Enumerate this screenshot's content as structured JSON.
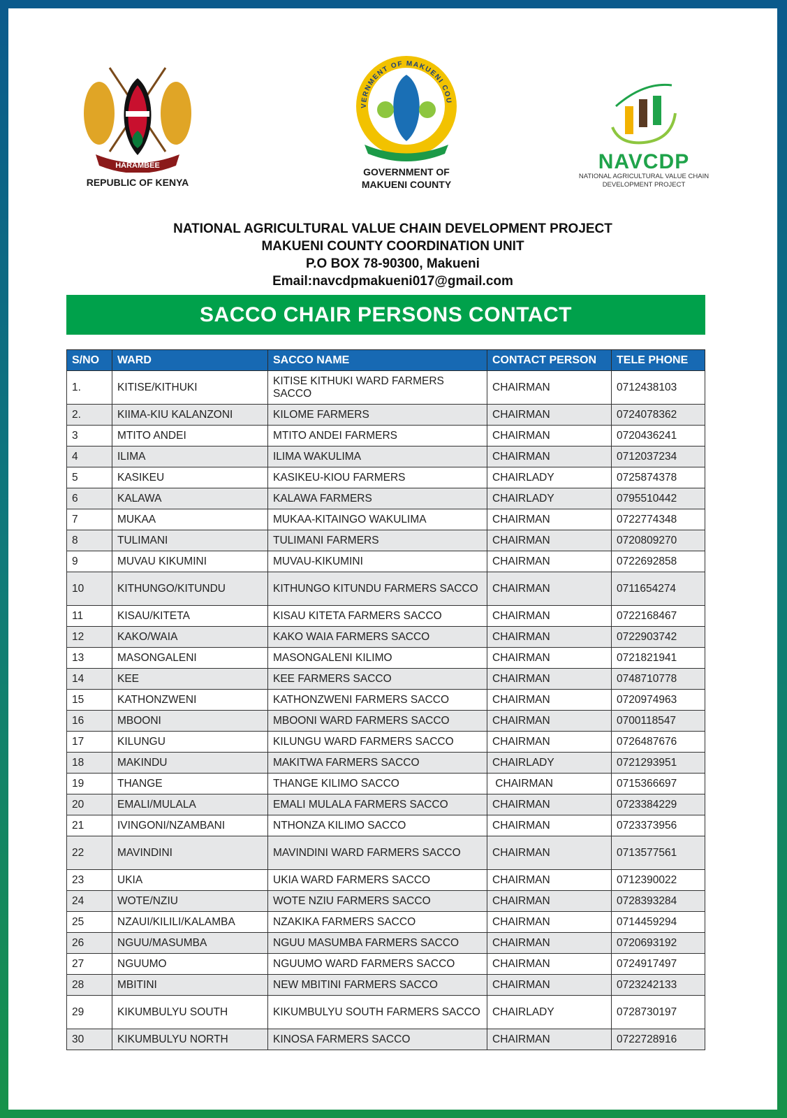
{
  "logos": {
    "kenya": {
      "caption": "REPUBLIC OF KENYA",
      "motto": "HARAMBEE"
    },
    "makueni": {
      "caption_line1": "GOVERNMENT OF",
      "caption_line2": "MAKUENI COUNTY",
      "seal_text": "GOVERNMENT OF MAKUENI COUNTY"
    },
    "navcdp": {
      "name": "NAVCDP",
      "sub_line1": "NATIONAL AGRICULTURAL VALUE CHAIN",
      "sub_line2": "DEVELOPMENT PROJECT"
    }
  },
  "heading": {
    "line1": "NATIONAL AGRICULTURAL VALUE CHAIN DEVELOPMENT PROJECT",
    "line2": "MAKUENI COUNTY COORDINATION UNIT",
    "line3": "P.O BOX 78-90300, Makueni",
    "line4": "Email:navcdpmakueni017@gmail.com"
  },
  "banner": "SACCO CHAIR PERSONS CONTACT",
  "colors": {
    "header_blue": "#1769b3",
    "banner_green": "#00a14b",
    "row_alt": "#e6e7e8"
  },
  "table": {
    "headers": [
      "S/NO",
      "WARD",
      "SACCO NAME",
      "CONTACT PERSON",
      "TELE PHONE"
    ],
    "rows": [
      [
        "1.",
        "KITISE/KITHUKI",
        "KITISE KITHUKI WARD FARMERS SACCO",
        "CHAIRMAN",
        "0712438103"
      ],
      [
        "2.",
        "KIIMA-KIU KALANZONI",
        "KILOME FARMERS",
        "CHAIRMAN",
        "0724078362"
      ],
      [
        "3",
        "MTITO ANDEI",
        "MTITO ANDEI FARMERS",
        "CHAIRMAN",
        "0720436241"
      ],
      [
        "4",
        "ILIMA",
        "ILIMA WAKULIMA",
        "CHAIRMAN",
        "0712037234"
      ],
      [
        "5",
        "KASIKEU",
        "KASIKEU-KIOU FARMERS",
        "CHAIRLADY",
        "0725874378"
      ],
      [
        "6",
        "KALAWA",
        "KALAWA FARMERS",
        "CHAIRLADY",
        "0795510442"
      ],
      [
        "7",
        "MUKAA",
        "MUKAA-KITAINGO WAKULIMA",
        "CHAIRMAN",
        "0722774348"
      ],
      [
        "8",
        "TULIMANI",
        "TULIMANI FARMERS",
        "CHAIRMAN",
        "0720809270"
      ],
      [
        "9",
        "MUVAU KIKUMINI",
        "MUVAU-KIKUMINI",
        "CHAIRMAN",
        "0722692858"
      ],
      [
        "10",
        "KITHUNGO/KITUNDU",
        "KITHUNGO KITUNDU FARMERS SACCO",
        "CHAIRMAN",
        "0711654274"
      ],
      [
        "11",
        "KISAU/KITETA",
        "KISAU KITETA FARMERS SACCO",
        "CHAIRMAN",
        "0722168467"
      ],
      [
        "12",
        "KAKO/WAIA",
        "KAKO WAIA FARMERS SACCO",
        "CHAIRMAN",
        "0722903742"
      ],
      [
        "13",
        "MASONGALENI",
        "MASONGALENI KILIMO",
        "CHAIRMAN",
        "0721821941"
      ],
      [
        "14",
        "KEE",
        "KEE FARMERS SACCO",
        "CHAIRMAN",
        "0748710778"
      ],
      [
        "15",
        "KATHONZWENI",
        "KATHONZWENI FARMERS SACCO",
        "CHAIRMAN",
        "0720974963"
      ],
      [
        "16",
        "MBOONI",
        "MBOONI WARD FARMERS SACCO",
        "CHAIRMAN",
        "0700118547"
      ],
      [
        "17",
        "KILUNGU",
        "KILUNGU WARD FARMERS SACCO",
        "CHAIRMAN",
        "0726487676"
      ],
      [
        "18",
        "MAKINDU",
        "MAKITWA FARMERS SACCO",
        "CHAIRLADY",
        "0721293951"
      ],
      [
        "19",
        "THANGE",
        "THANGE KILIMO SACCO",
        " CHAIRMAN",
        "0715366697"
      ],
      [
        "20",
        "EMALI/MULALA",
        "EMALI MULALA FARMERS SACCO",
        "CHAIRMAN",
        "0723384229"
      ],
      [
        "21",
        "IVINGONI/NZAMBANI",
        "NTHONZA KILIMO SACCO",
        "CHAIRMAN",
        "0723373956"
      ],
      [
        "22",
        "MAVINDINI",
        "MAVINDINI WARD FARMERS SACCO",
        "CHAIRMAN",
        "0713577561"
      ],
      [
        "23",
        "UKIA",
        "UKIA WARD FARMERS SACCO",
        "CHAIRMAN",
        "0712390022"
      ],
      [
        "24",
        "WOTE/NZIU",
        "WOTE NZIU FARMERS SACCO",
        "CHAIRMAN",
        "0728393284"
      ],
      [
        "25",
        "NZAUI/KILILI/KALAMBA",
        "NZAKIKA FARMERS SACCO",
        "CHAIRMAN",
        "0714459294"
      ],
      [
        "26",
        "NGUU/MASUMBA",
        "NGUU MASUMBA FARMERS SACCO",
        "CHAIRMAN",
        "0720693192"
      ],
      [
        "27",
        "NGUUMO",
        "NGUUMO WARD FARMERS SACCO",
        "CHAIRMAN",
        "0724917497"
      ],
      [
        "28",
        "MBITINI",
        "NEW MBITINI FARMERS SACCO",
        "CHAIRMAN",
        "0723242133"
      ],
      [
        "29",
        "KIKUMBULYU SOUTH",
        "KIKUMBULYU SOUTH FARMERS SACCO",
        "CHAIRLADY",
        "0728730197"
      ],
      [
        "30",
        "KIKUMBULYU NORTH",
        "KINOSA FARMERS SACCO",
        "CHAIRMAN",
        "0722728916"
      ]
    ]
  }
}
